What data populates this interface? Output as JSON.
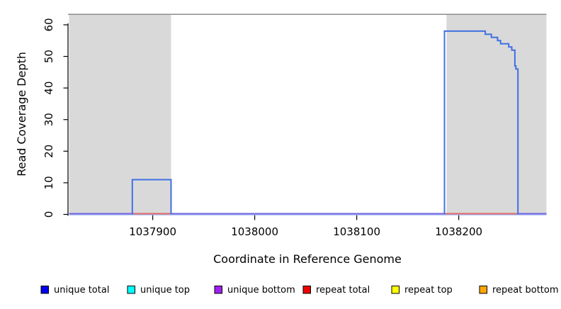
{
  "chart_data": {
    "type": "step-line",
    "title": "",
    "xlabel": "Coordinate in Reference Genome",
    "ylabel": "Read Coverage Depth",
    "xlim": [
      1037818,
      1038286
    ],
    "ylim": [
      0,
      63.25
    ],
    "x_ticks": [
      1037900,
      1038000,
      1038100,
      1038200
    ],
    "y_ticks": [
      0,
      10,
      20,
      30,
      40,
      50,
      60
    ],
    "grid": false,
    "legend_position": "bottom",
    "plot_bg_color": "#FFFFFF",
    "shaded_region_color": "#D9D9D9",
    "top_border_color": "#8C8C8C",
    "axis_color": "#000000",
    "shaded_regions": [
      [
        1037818,
        1037918
      ],
      [
        1038188,
        1038286
      ]
    ],
    "series": [
      {
        "name": "unique total",
        "legend_color": "#0000EE",
        "draw_color": "#4170E2",
        "step_points": [
          [
            1037818,
            0
          ],
          [
            1037880,
            11
          ],
          [
            1037918,
            0
          ],
          [
            1038186,
            58
          ],
          [
            1038226,
            57
          ],
          [
            1038232,
            56
          ],
          [
            1038238,
            55
          ],
          [
            1038241,
            54
          ],
          [
            1038249,
            53
          ],
          [
            1038252,
            52
          ],
          [
            1038255,
            47
          ],
          [
            1038256,
            46
          ],
          [
            1038258,
            0
          ],
          [
            1038286,
            0
          ]
        ]
      },
      {
        "name": "unique top",
        "legend_color": "#00FFFF",
        "draw_color": "#00FFFF",
        "zero_segments": []
      },
      {
        "name": "unique bottom",
        "legend_color": "#A020F0",
        "draw_color": "#7768E0",
        "zero_segments": [
          [
            1037818,
            1038286
          ]
        ]
      },
      {
        "name": "repeat total",
        "legend_color": "#EE0000",
        "draw_color": "#E36A6A",
        "zero_segments": [
          [
            1037880,
            1037918
          ],
          [
            1038186,
            1038258
          ]
        ]
      },
      {
        "name": "repeat top",
        "legend_color": "#FFFF00",
        "draw_color": "#FFFF00",
        "zero_segments": []
      },
      {
        "name": "repeat bottom",
        "legend_color": "#FFA500",
        "draw_color": "#FFA500",
        "zero_segments": []
      }
    ]
  }
}
